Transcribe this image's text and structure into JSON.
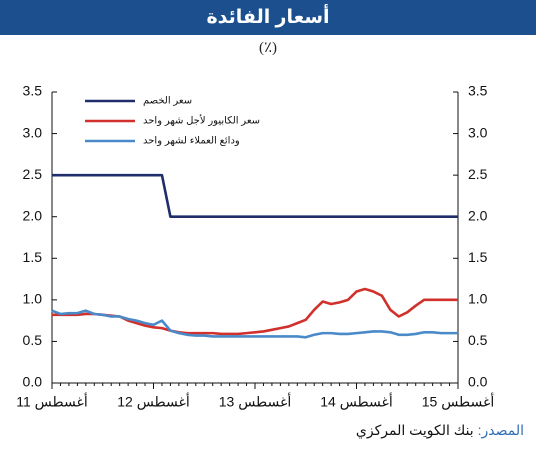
{
  "chart_data": {
    "type": "line",
    "title": "أسعار الفائدة",
    "subtitle": "(٪)",
    "categories": [
      "أغسطس 11",
      null,
      null,
      null,
      null,
      null,
      null,
      null,
      null,
      null,
      null,
      null,
      "أغسطس 12",
      null,
      null,
      null,
      null,
      null,
      null,
      null,
      null,
      null,
      null,
      null,
      "أغسطس 13",
      null,
      null,
      null,
      null,
      null,
      null,
      null,
      null,
      null,
      null,
      null,
      "أغسطس 14",
      null,
      null,
      null,
      null,
      null,
      null,
      null,
      null,
      null,
      null,
      null,
      "أغسطس 15"
    ],
    "series": [
      {
        "name": "سعر الخصم",
        "color": "#1f2d6b",
        "values": [
          2.5,
          2.5,
          2.5,
          2.5,
          2.5,
          2.5,
          2.5,
          2.5,
          2.5,
          2.5,
          2.5,
          2.5,
          2.5,
          2.5,
          2.0,
          2.0,
          2.0,
          2.0,
          2.0,
          2.0,
          2.0,
          2.0,
          2.0,
          2.0,
          2.0,
          2.0,
          2.0,
          2.0,
          2.0,
          2.0,
          2.0,
          2.0,
          2.0,
          2.0,
          2.0,
          2.0,
          2.0,
          2.0,
          2.0,
          2.0,
          2.0,
          2.0,
          2.0,
          2.0,
          2.0,
          2.0,
          2.0,
          2.0,
          2.0
        ]
      },
      {
        "name": "سعر الكابيور لأجل شهر واحد",
        "color": "#d0312d",
        "values": [
          0.82,
          0.82,
          0.82,
          0.82,
          0.83,
          0.83,
          0.82,
          0.81,
          0.8,
          0.75,
          0.72,
          0.69,
          0.67,
          0.66,
          0.63,
          0.61,
          0.6,
          0.6,
          0.6,
          0.6,
          0.59,
          0.59,
          0.59,
          0.6,
          0.61,
          0.62,
          0.64,
          0.66,
          0.68,
          0.72,
          0.76,
          0.88,
          0.98,
          0.95,
          0.97,
          1.0,
          1.1,
          1.13,
          1.1,
          1.05,
          0.88,
          0.8,
          0.85,
          0.93,
          1.0,
          1.0,
          1.0,
          1.0,
          1.0
        ]
      },
      {
        "name": "ودائع العملاء لشهر واحد",
        "color": "#4a8ac9",
        "values": [
          0.87,
          0.83,
          0.84,
          0.84,
          0.87,
          0.83,
          0.82,
          0.8,
          0.8,
          0.77,
          0.75,
          0.72,
          0.7,
          0.75,
          0.63,
          0.6,
          0.58,
          0.57,
          0.57,
          0.56,
          0.56,
          0.56,
          0.56,
          0.56,
          0.56,
          0.56,
          0.56,
          0.56,
          0.56,
          0.56,
          0.55,
          0.58,
          0.6,
          0.6,
          0.59,
          0.59,
          0.6,
          0.61,
          0.62,
          0.62,
          0.61,
          0.58,
          0.58,
          0.59,
          0.61,
          0.61,
          0.6,
          0.6,
          0.6
        ]
      }
    ],
    "ylim": [
      0,
      3.5
    ],
    "yticks": [
      {
        "value": 0,
        "label": "0.0"
      },
      0.5,
      {
        "value": 1,
        "label": "1.0"
      },
      1.5,
      {
        "value": 2,
        "label": "2.0"
      },
      2.5,
      {
        "value": 3,
        "label": "3.0"
      },
      3.5
    ],
    "grid": false,
    "legend": "top-left",
    "source": {
      "label": "المصدر:",
      "text": " بنك الكويت المركزي"
    }
  }
}
